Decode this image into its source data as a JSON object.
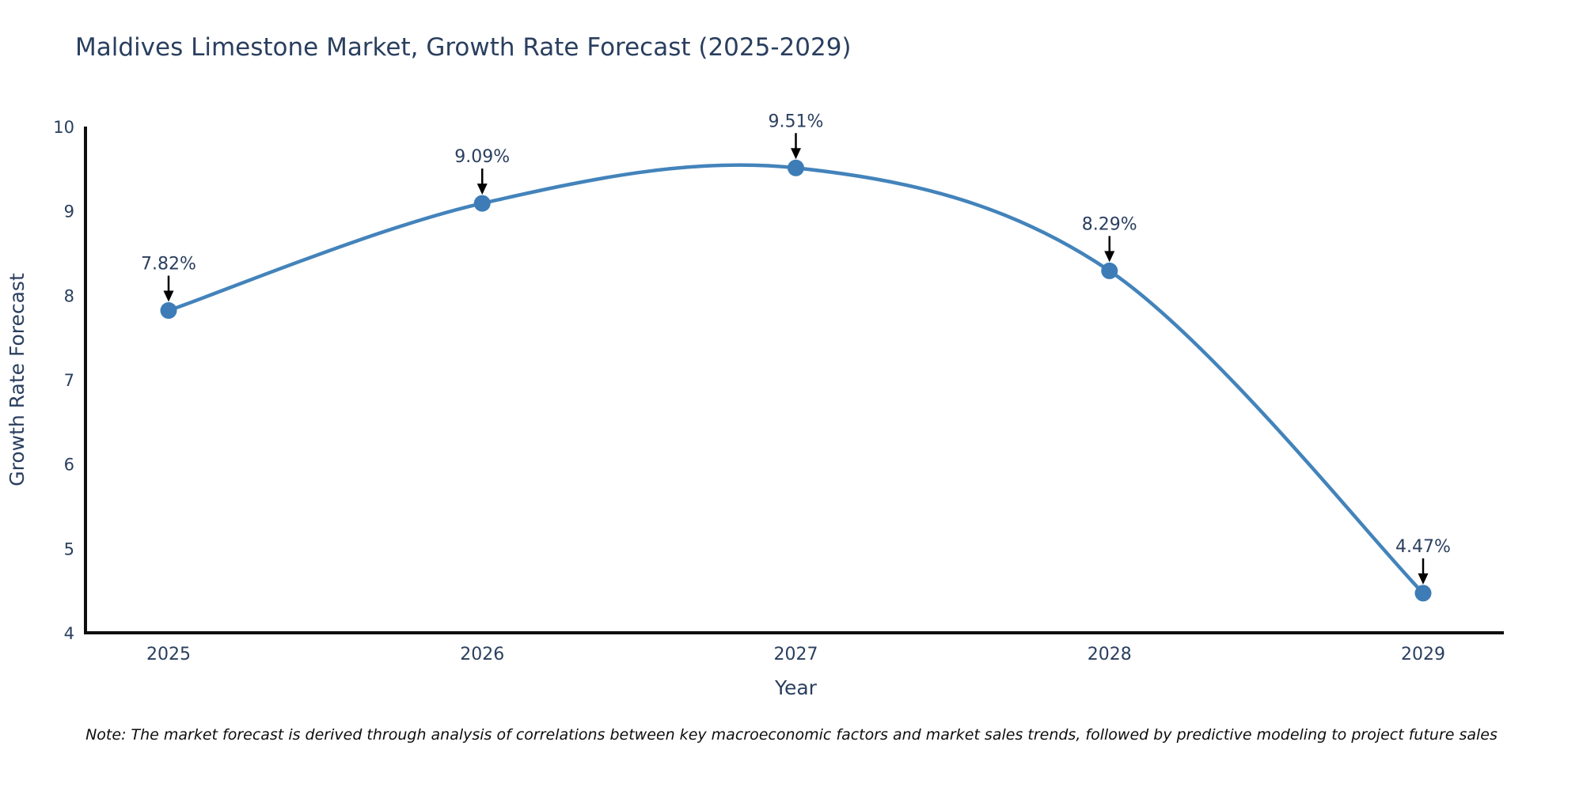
{
  "chart_data": {
    "type": "line",
    "title": "Maldives Limestone Market, Growth Rate Forecast (2025-2029)",
    "xlabel": "Year",
    "ylabel": "Growth Rate Forecast",
    "categories": [
      "2025",
      "2026",
      "2027",
      "2028",
      "2029"
    ],
    "series": [
      {
        "name": "Growth Rate Forecast",
        "values": [
          7.82,
          9.09,
          9.51,
          8.29,
          4.47
        ],
        "point_labels": [
          "7.82%",
          "9.09%",
          "9.51%",
          "8.29%",
          "4.47%"
        ]
      }
    ],
    "ylim": [
      4,
      10
    ],
    "yticks": [
      "4",
      "5",
      "6",
      "7",
      "8",
      "9",
      "10"
    ],
    "grid": false,
    "legend_position": "none",
    "line_shape": "spline",
    "annotations_have_arrows": true,
    "colors": {
      "line": "#4383bb",
      "marker": "#3d7cb6",
      "axis_line": "#0f0f0f",
      "tick_text": "#2a3f5f",
      "axis_title_text": "#2a3f5f",
      "title_text": "#2a3f5f",
      "annotation_text": "#2a3f5f",
      "annotation_arrow": "#000000",
      "background": "#ffffff"
    },
    "note": "Note: The market forecast is derived through analysis of correlations between key macroeconomic factors and market sales trends, followed by predictive modeling to project future sales"
  }
}
